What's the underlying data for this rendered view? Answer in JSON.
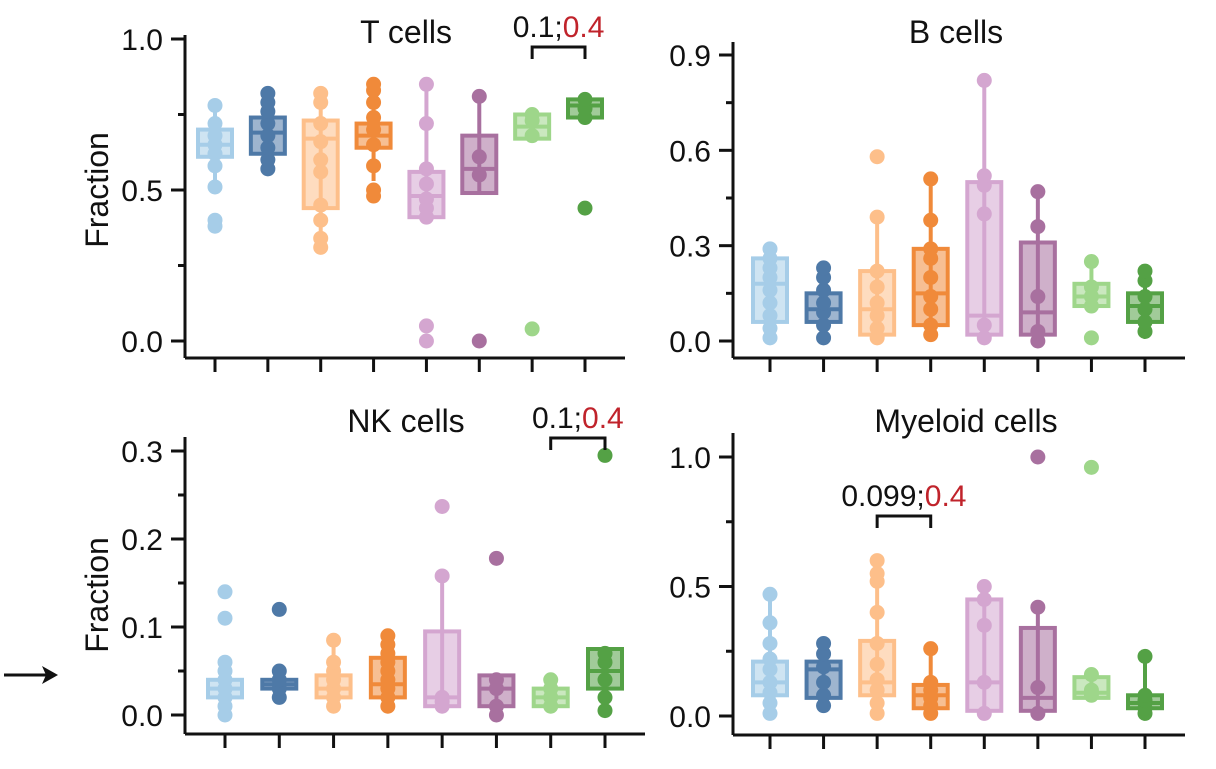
{
  "figure": {
    "pointer_icon": "right-arrow-icon",
    "note": ""
  },
  "chart_data": [
    {
      "type": "box",
      "title": "T cells",
      "ylabel": "Fraction",
      "ylim": [
        -0.05,
        1.0
      ],
      "yticks": [
        0.0,
        0.5,
        1.0
      ],
      "ytick_labels": [
        "0.0",
        "0.5",
        "1.0"
      ],
      "groups": [
        {
          "color": "#a6cde8",
          "q1": 0.61,
          "median": 0.65,
          "q3": 0.7,
          "whisker_low": 0.5,
          "whisker_high": 0.77,
          "points": [
            0.38,
            0.4,
            0.51,
            0.58,
            0.62,
            0.65,
            0.68,
            0.72,
            0.78
          ]
        },
        {
          "color": "#4e79a7",
          "q1": 0.62,
          "median": 0.69,
          "q3": 0.74,
          "whisker_low": 0.57,
          "whisker_high": 0.82,
          "points": [
            0.57,
            0.6,
            0.64,
            0.68,
            0.72,
            0.76,
            0.79,
            0.82
          ]
        },
        {
          "color": "#fdbf8a",
          "q1": 0.44,
          "median": 0.67,
          "q3": 0.73,
          "whisker_low": 0.31,
          "whisker_high": 0.82,
          "points": [
            0.31,
            0.34,
            0.4,
            0.45,
            0.56,
            0.6,
            0.66,
            0.72,
            0.79,
            0.82
          ]
        },
        {
          "color": "#f08a3a",
          "q1": 0.64,
          "median": 0.68,
          "q3": 0.72,
          "whisker_low": 0.53,
          "whisker_high": 0.85,
          "points": [
            0.48,
            0.5,
            0.58,
            0.65,
            0.7,
            0.74,
            0.79,
            0.83,
            0.85
          ]
        },
        {
          "color": "#d4a6d0",
          "q1": 0.41,
          "median": 0.48,
          "q3": 0.56,
          "whisker_low": 0.41,
          "whisker_high": 0.85,
          "points": [
            0.0,
            0.05,
            0.41,
            0.44,
            0.47,
            0.52,
            0.57,
            0.72,
            0.85
          ]
        },
        {
          "color": "#a8709f",
          "q1": 0.49,
          "median": 0.57,
          "q3": 0.68,
          "whisker_low": 0.49,
          "whisker_high": 0.81,
          "points": [
            0.0,
            0.55,
            0.61,
            0.81
          ]
        },
        {
          "color": "#9ed68a",
          "q1": 0.67,
          "median": 0.71,
          "q3": 0.75,
          "whisker_low": 0.67,
          "whisker_high": 0.76,
          "points": [
            0.04,
            0.68,
            0.73,
            0.75
          ]
        },
        {
          "color": "#54a145",
          "q1": 0.74,
          "median": 0.78,
          "q3": 0.8,
          "whisker_low": 0.74,
          "whisker_high": 0.8,
          "points": [
            0.44,
            0.74,
            0.77,
            0.8
          ]
        }
      ],
      "annotation": {
        "text_black": "0.1;",
        "text_red": "0.4",
        "bracket_from": 7,
        "bracket_to": 8
      }
    },
    {
      "type": "box",
      "title": "B cells",
      "ylabel": "",
      "ylim": [
        -0.03,
        0.9
      ],
      "yticks": [
        0.0,
        0.3,
        0.6,
        0.9
      ],
      "ytick_labels": [
        "0.0",
        "0.3",
        "0.6",
        "0.9"
      ],
      "groups": [
        {
          "color": "#a6cde8",
          "q1": 0.06,
          "median": 0.18,
          "q3": 0.26,
          "whisker_low": 0.01,
          "whisker_high": 0.29,
          "points": [
            0.01,
            0.04,
            0.08,
            0.12,
            0.16,
            0.2,
            0.23,
            0.26,
            0.29
          ]
        },
        {
          "color": "#4e79a7",
          "q1": 0.06,
          "median": 0.1,
          "q3": 0.15,
          "whisker_low": 0.01,
          "whisker_high": 0.23,
          "points": [
            0.01,
            0.05,
            0.09,
            0.12,
            0.16,
            0.2,
            0.23
          ]
        },
        {
          "color": "#fdbf8a",
          "q1": 0.02,
          "median": 0.1,
          "q3": 0.22,
          "whisker_low": 0.01,
          "whisker_high": 0.39,
          "points": [
            0.01,
            0.04,
            0.08,
            0.12,
            0.17,
            0.22,
            0.39,
            0.58
          ]
        },
        {
          "color": "#f08a3a",
          "q1": 0.05,
          "median": 0.15,
          "q3": 0.29,
          "whisker_low": 0.02,
          "whisker_high": 0.51,
          "points": [
            0.02,
            0.05,
            0.1,
            0.14,
            0.2,
            0.26,
            0.29,
            0.38,
            0.51
          ]
        },
        {
          "color": "#d4a6d0",
          "q1": 0.02,
          "median": 0.08,
          "q3": 0.5,
          "whisker_low": 0.01,
          "whisker_high": 0.82,
          "points": [
            0.01,
            0.05,
            0.4,
            0.49,
            0.52,
            0.82
          ]
        },
        {
          "color": "#a8709f",
          "q1": 0.02,
          "median": 0.09,
          "q3": 0.31,
          "whisker_low": 0.0,
          "whisker_high": 0.47,
          "points": [
            0.0,
            0.03,
            0.14,
            0.36,
            0.47
          ]
        },
        {
          "color": "#9ed68a",
          "q1": 0.11,
          "median": 0.14,
          "q3": 0.18,
          "whisker_low": 0.11,
          "whisker_high": 0.25,
          "points": [
            0.01,
            0.11,
            0.14,
            0.17,
            0.25
          ]
        },
        {
          "color": "#54a145",
          "q1": 0.06,
          "median": 0.11,
          "q3": 0.15,
          "whisker_low": 0.03,
          "whisker_high": 0.22,
          "points": [
            0.03,
            0.06,
            0.1,
            0.14,
            0.19,
            0.22
          ]
        }
      ],
      "annotation": null
    },
    {
      "type": "box",
      "title": "NK cells",
      "ylabel": "Fraction",
      "ylim": [
        -0.01,
        0.3
      ],
      "yticks": [
        0.0,
        0.1,
        0.2,
        0.3
      ],
      "ytick_labels": [
        "0.0",
        "0.1",
        "0.2",
        "0.3"
      ],
      "groups": [
        {
          "color": "#a6cde8",
          "q1": 0.02,
          "median": 0.03,
          "q3": 0.04,
          "whisker_low": 0.0,
          "whisker_high": 0.06,
          "points": [
            0.0,
            0.01,
            0.02,
            0.03,
            0.04,
            0.05,
            0.06,
            0.11,
            0.14
          ]
        },
        {
          "color": "#4e79a7",
          "q1": 0.03,
          "median": 0.035,
          "q3": 0.04,
          "whisker_low": 0.02,
          "whisker_high": 0.05,
          "points": [
            0.02,
            0.03,
            0.04,
            0.05,
            0.12
          ]
        },
        {
          "color": "#fdbf8a",
          "q1": 0.02,
          "median": 0.03,
          "q3": 0.045,
          "whisker_low": 0.01,
          "whisker_high": 0.085,
          "points": [
            0.01,
            0.02,
            0.03,
            0.04,
            0.05,
            0.06,
            0.085
          ]
        },
        {
          "color": "#f08a3a",
          "q1": 0.02,
          "median": 0.035,
          "q3": 0.065,
          "whisker_low": 0.01,
          "whisker_high": 0.095,
          "points": [
            0.01,
            0.02,
            0.03,
            0.04,
            0.05,
            0.06,
            0.07,
            0.08,
            0.09
          ]
        },
        {
          "color": "#d4a6d0",
          "q1": 0.01,
          "median": 0.02,
          "q3": 0.095,
          "whisker_low": 0.01,
          "whisker_high": 0.16,
          "points": [
            0.01,
            0.015,
            0.02,
            0.158,
            0.237
          ]
        },
        {
          "color": "#a8709f",
          "q1": 0.01,
          "median": 0.03,
          "q3": 0.045,
          "whisker_low": 0.0,
          "whisker_high": 0.045,
          "points": [
            0.0,
            0.01,
            0.03,
            0.04,
            0.178
          ]
        },
        {
          "color": "#9ed68a",
          "q1": 0.01,
          "median": 0.02,
          "q3": 0.03,
          "whisker_low": 0.01,
          "whisker_high": 0.04,
          "points": [
            0.01,
            0.02,
            0.03,
            0.04
          ]
        },
        {
          "color": "#54a145",
          "q1": 0.03,
          "median": 0.05,
          "q3": 0.075,
          "whisker_low": 0.005,
          "whisker_high": 0.075,
          "points": [
            0.005,
            0.02,
            0.04,
            0.06,
            0.07,
            0.295
          ]
        }
      ],
      "annotation": {
        "text_black": "0.1;",
        "text_red": "0.4",
        "bracket_from": 7,
        "bracket_to": 8
      }
    },
    {
      "type": "box",
      "title": "Myeloid cells",
      "ylabel": "",
      "ylim": [
        -0.03,
        1.05
      ],
      "yticks": [
        0.0,
        0.5,
        1.0
      ],
      "ytick_labels": [
        "0.0",
        "0.5",
        "1.0"
      ],
      "groups": [
        {
          "color": "#a6cde8",
          "q1": 0.08,
          "median": 0.13,
          "q3": 0.21,
          "whisker_low": 0.01,
          "whisker_high": 0.47,
          "points": [
            0.01,
            0.05,
            0.09,
            0.13,
            0.18,
            0.22,
            0.28,
            0.36,
            0.47
          ]
        },
        {
          "color": "#4e79a7",
          "q1": 0.07,
          "median": 0.18,
          "q3": 0.21,
          "whisker_low": 0.04,
          "whisker_high": 0.28,
          "points": [
            0.04,
            0.08,
            0.13,
            0.19,
            0.24,
            0.28
          ]
        },
        {
          "color": "#fdbf8a",
          "q1": 0.08,
          "median": 0.13,
          "q3": 0.29,
          "whisker_low": 0.01,
          "whisker_high": 0.6,
          "points": [
            0.01,
            0.05,
            0.1,
            0.14,
            0.2,
            0.28,
            0.4,
            0.52,
            0.55,
            0.6
          ]
        },
        {
          "color": "#f08a3a",
          "q1": 0.03,
          "median": 0.08,
          "q3": 0.12,
          "whisker_low": 0.01,
          "whisker_high": 0.26,
          "points": [
            0.01,
            0.04,
            0.07,
            0.1,
            0.13,
            0.26
          ]
        },
        {
          "color": "#d4a6d0",
          "q1": 0.02,
          "median": 0.13,
          "q3": 0.45,
          "whisker_low": 0.01,
          "whisker_high": 0.5,
          "points": [
            0.01,
            0.13,
            0.35,
            0.45,
            0.5
          ]
        },
        {
          "color": "#a8709f",
          "q1": 0.02,
          "median": 0.07,
          "q3": 0.34,
          "whisker_low": 0.01,
          "whisker_high": 0.42,
          "points": [
            0.01,
            0.11,
            0.42,
            1.0
          ]
        },
        {
          "color": "#9ed68a",
          "q1": 0.07,
          "median": 0.09,
          "q3": 0.15,
          "whisker_low": 0.07,
          "whisker_high": 0.16,
          "points": [
            0.08,
            0.1,
            0.16,
            0.96
          ]
        },
        {
          "color": "#54a145",
          "q1": 0.03,
          "median": 0.05,
          "q3": 0.08,
          "whisker_low": 0.01,
          "whisker_high": 0.23,
          "points": [
            0.01,
            0.03,
            0.06,
            0.08,
            0.23
          ]
        }
      ],
      "annotation": {
        "text_black": "0.099;",
        "text_red": "0.4",
        "bracket_from": 3,
        "bracket_to": 4
      }
    }
  ]
}
